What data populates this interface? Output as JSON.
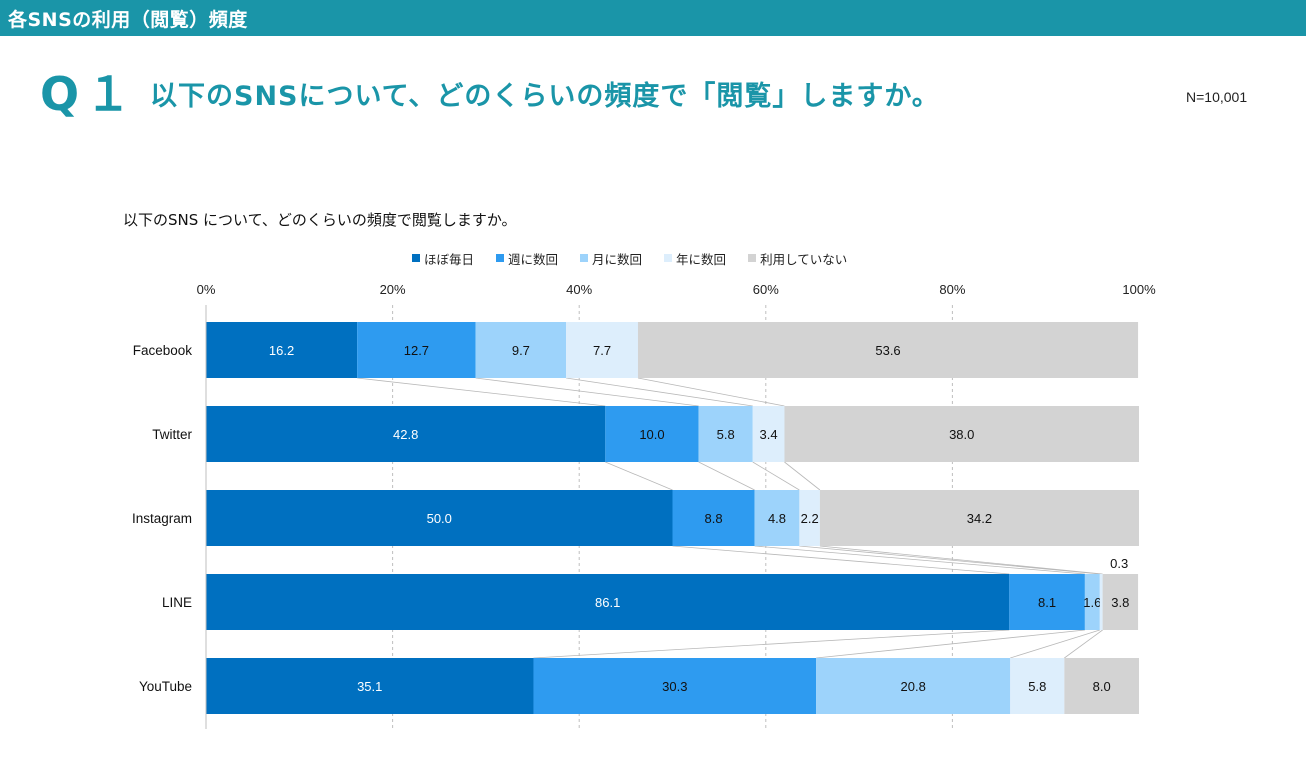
{
  "header": {
    "title": "各SNSの利用（閲覧）頻度"
  },
  "question": {
    "label": "Q１",
    "text": "以下のSNSについて、どのくらいの頻度で「閲覧」しますか。",
    "n": "N=10,001"
  },
  "chart_data": {
    "type": "bar",
    "orientation": "horizontal",
    "stacked": "percent",
    "title": "以下のSNS について、どのくらいの頻度で閲覧しますか。",
    "categories": [
      "Facebook",
      "Twitter",
      "Instagram",
      "LINE",
      "YouTube"
    ],
    "x_ticks": [
      "0%",
      "20%",
      "40%",
      "60%",
      "80%",
      "100%"
    ],
    "xlim": [
      0,
      100
    ],
    "grid": true,
    "legend_position": "top",
    "series": [
      {
        "name": "ほぼ毎日",
        "color": "#0070c0",
        "label_color": "#ffffff",
        "values": [
          16.2,
          42.8,
          50.0,
          86.1,
          35.1
        ]
      },
      {
        "name": "週に数回",
        "color": "#2e9bf0",
        "label_color": "#111111",
        "values": [
          12.7,
          10.0,
          8.8,
          8.1,
          30.3
        ]
      },
      {
        "name": "月に数回",
        "color": "#9dd3fb",
        "label_color": "#111111",
        "values": [
          9.7,
          5.8,
          4.8,
          1.6,
          20.8
        ]
      },
      {
        "name": "年に数回",
        "color": "#ddeefc",
        "label_color": "#111111",
        "values": [
          7.7,
          3.4,
          2.2,
          0.3,
          5.8
        ]
      },
      {
        "name": "利用していない",
        "color": "#d3d3d3",
        "label_color": "#111111",
        "values": [
          53.6,
          38.0,
          34.2,
          3.8,
          8.0
        ]
      }
    ]
  }
}
